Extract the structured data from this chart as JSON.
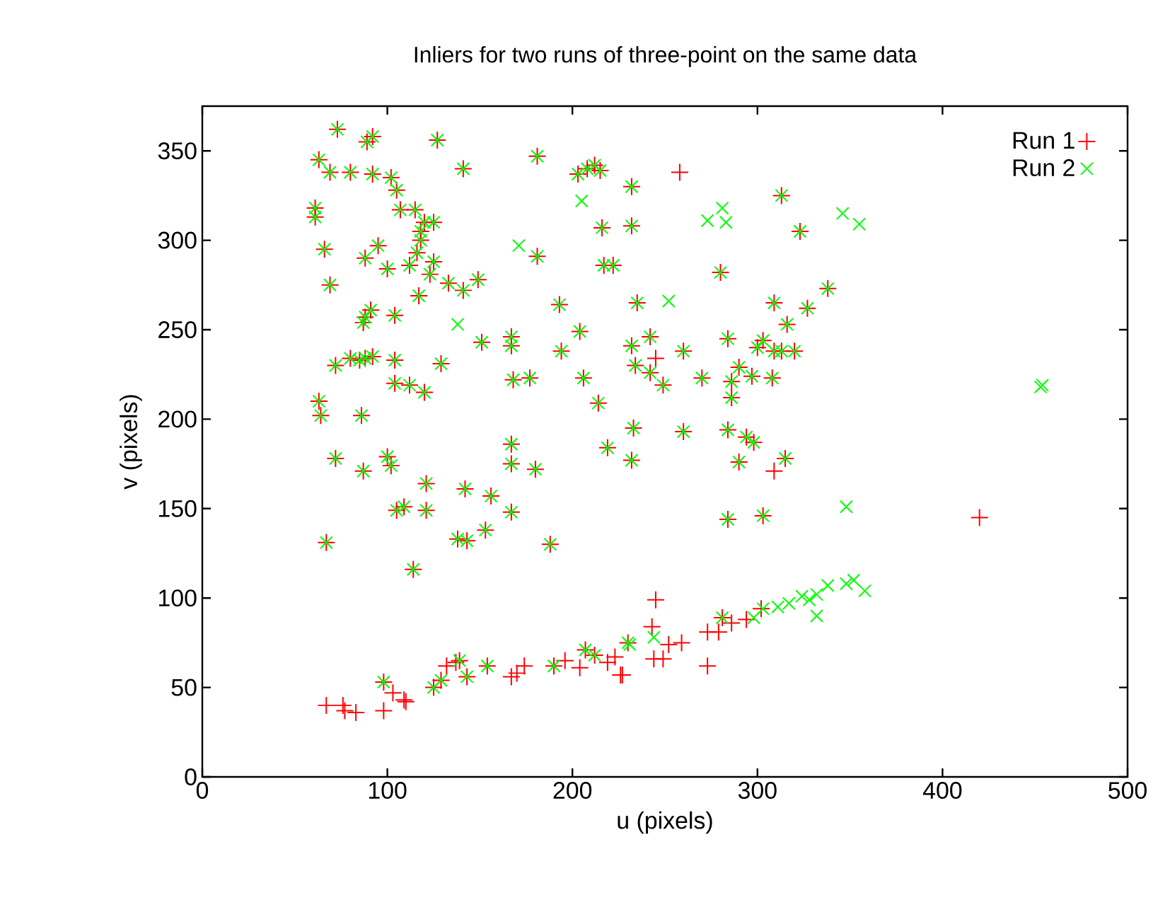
{
  "chart_data": {
    "type": "scatter",
    "title": "Inliers for two runs of three-point on the same data",
    "xlabel": "u (pixels)",
    "ylabel": "v (pixels)",
    "xlim": [
      0,
      500
    ],
    "ylim": [
      0,
      375
    ],
    "xticks": [
      0,
      100,
      200,
      300,
      400,
      500
    ],
    "yticks": [
      0,
      50,
      100,
      150,
      200,
      250,
      300,
      350
    ],
    "grid": false,
    "legend": "top right",
    "series": [
      {
        "name": "Run 1",
        "color": "#ff0000",
        "marker": "plus",
        "x": [
          73,
          89,
          92,
          127,
          63,
          69,
          80,
          92,
          102,
          105,
          141,
          181,
          61,
          61,
          107,
          115,
          120,
          125,
          118,
          118,
          66,
          95,
          88,
          100,
          112,
          116,
          125,
          123,
          133,
          141,
          149,
          117,
          69,
          181,
          193,
          88,
          87,
          91,
          104,
          151,
          167,
          167,
          194,
          72,
          80,
          85,
          88,
          92,
          104,
          129,
          104,
          112,
          120,
          168,
          177,
          63,
          64,
          86,
          72,
          87,
          100,
          102,
          121,
          142,
          156,
          167,
          167,
          180,
          167,
          105,
          109,
          121,
          138,
          143,
          153,
          188,
          67,
          114,
          203,
          208,
          212,
          215,
          232,
          216,
          232,
          217,
          222,
          313,
          323,
          280,
          338,
          327,
          309,
          235,
          204,
          242,
          232,
          260,
          284,
          316,
          303,
          300,
          313,
          320,
          309,
          234,
          242,
          270,
          290,
          297,
          308,
          286,
          206,
          249,
          214,
          233,
          219,
          232,
          260,
          284,
          294,
          298,
          290,
          315,
          284,
          303,
          286,
          98,
          125,
          129,
          139,
          143,
          154,
          190,
          207,
          212,
          230,
          281,
          258,
          420,
          245,
          309,
          67,
          76,
          77,
          83,
          98,
          103,
          109,
          110,
          132,
          137,
          167,
          170,
          174,
          196,
          204,
          219,
          223,
          226,
          245,
          243,
          244,
          249,
          252,
          259,
          273,
          273,
          279,
          286,
          294,
          302,
          227
        ],
        "values": [
          362,
          355,
          358,
          356,
          345,
          338,
          338,
          337,
          335,
          328,
          340,
          347,
          318,
          313,
          317,
          317,
          310,
          310,
          305,
          300,
          295,
          297,
          290,
          284,
          286,
          293,
          288,
          281,
          276,
          272,
          278,
          269,
          275,
          291,
          264,
          257,
          254,
          261,
          258,
          243,
          246,
          241,
          238,
          230,
          234,
          233,
          234,
          235,
          233,
          231,
          220,
          219,
          215,
          222,
          223,
          210,
          202,
          202,
          178,
          171,
          179,
          174,
          164,
          161,
          157,
          186,
          175,
          172,
          148,
          149,
          151,
          149,
          133,
          132,
          138,
          130,
          131,
          116,
          337,
          340,
          342,
          339,
          330,
          307,
          308,
          286,
          286,
          325,
          305,
          282,
          273,
          262,
          265,
          265,
          249,
          246,
          241,
          238,
          245,
          253,
          244,
          240,
          238,
          238,
          238,
          230,
          226,
          223,
          229,
          224,
          223,
          221,
          223,
          219,
          209,
          195,
          184,
          177,
          193,
          194,
          190,
          187,
          176,
          178,
          144,
          146,
          212,
          53,
          50,
          54,
          65,
          56,
          62,
          62,
          71,
          68,
          75,
          89,
          338,
          145,
          234,
          171,
          40,
          40,
          37,
          36,
          37,
          47,
          43,
          42,
          62,
          64,
          56,
          58,
          62,
          65,
          61,
          64,
          67,
          57,
          99,
          84,
          66,
          66,
          74,
          75,
          81,
          62,
          81,
          86,
          88,
          94,
          57
        ]
      },
      {
        "name": "Run 2",
        "color": "#00ff00",
        "marker": "cross",
        "x": [
          73,
          89,
          92,
          127,
          63,
          69,
          80,
          92,
          102,
          105,
          141,
          181,
          61,
          61,
          107,
          115,
          120,
          125,
          118,
          118,
          66,
          95,
          88,
          100,
          112,
          116,
          125,
          123,
          133,
          141,
          149,
          117,
          69,
          181,
          193,
          88,
          87,
          91,
          104,
          151,
          167,
          167,
          194,
          72,
          80,
          85,
          88,
          92,
          104,
          129,
          104,
          112,
          120,
          168,
          177,
          63,
          64,
          86,
          72,
          87,
          100,
          102,
          121,
          142,
          156,
          167,
          167,
          180,
          167,
          105,
          109,
          121,
          138,
          143,
          153,
          188,
          67,
          114,
          203,
          208,
          212,
          215,
          232,
          216,
          232,
          217,
          222,
          313,
          323,
          280,
          338,
          327,
          309,
          235,
          204,
          242,
          232,
          260,
          284,
          316,
          303,
          300,
          313,
          320,
          309,
          234,
          242,
          270,
          290,
          297,
          308,
          286,
          206,
          249,
          214,
          233,
          219,
          232,
          260,
          284,
          294,
          298,
          290,
          315,
          284,
          303,
          286,
          98,
          125,
          129,
          139,
          143,
          154,
          190,
          207,
          212,
          230,
          281,
          205,
          273,
          281,
          283,
          346,
          355,
          252,
          171,
          138,
          348,
          453,
          454,
          231,
          244,
          298,
          303,
          311,
          317,
          324,
          332,
          332,
          338,
          348,
          358,
          352,
          328
        ],
        "values": [
          362,
          355,
          358,
          356,
          345,
          338,
          338,
          337,
          335,
          328,
          340,
          347,
          318,
          313,
          317,
          317,
          310,
          310,
          305,
          300,
          295,
          297,
          290,
          284,
          286,
          293,
          288,
          281,
          276,
          272,
          278,
          269,
          275,
          291,
          264,
          257,
          254,
          261,
          258,
          243,
          246,
          241,
          238,
          230,
          234,
          233,
          234,
          235,
          233,
          231,
          220,
          219,
          215,
          222,
          223,
          210,
          202,
          202,
          178,
          171,
          179,
          174,
          164,
          161,
          157,
          186,
          175,
          172,
          148,
          149,
          151,
          149,
          133,
          132,
          138,
          130,
          131,
          116,
          337,
          340,
          342,
          339,
          330,
          307,
          308,
          286,
          286,
          325,
          305,
          282,
          273,
          262,
          265,
          265,
          249,
          246,
          241,
          238,
          245,
          253,
          244,
          240,
          238,
          238,
          238,
          230,
          226,
          223,
          229,
          224,
          223,
          221,
          223,
          219,
          209,
          195,
          184,
          177,
          193,
          194,
          190,
          187,
          176,
          178,
          144,
          146,
          212,
          53,
          50,
          54,
          65,
          56,
          62,
          62,
          71,
          68,
          75,
          89,
          322,
          311,
          318,
          310,
          315,
          309,
          266,
          297,
          253,
          151,
          218,
          219,
          74,
          78,
          89,
          94,
          95,
          97,
          101,
          102,
          90,
          107,
          108,
          104,
          110,
          99
        ]
      }
    ]
  }
}
